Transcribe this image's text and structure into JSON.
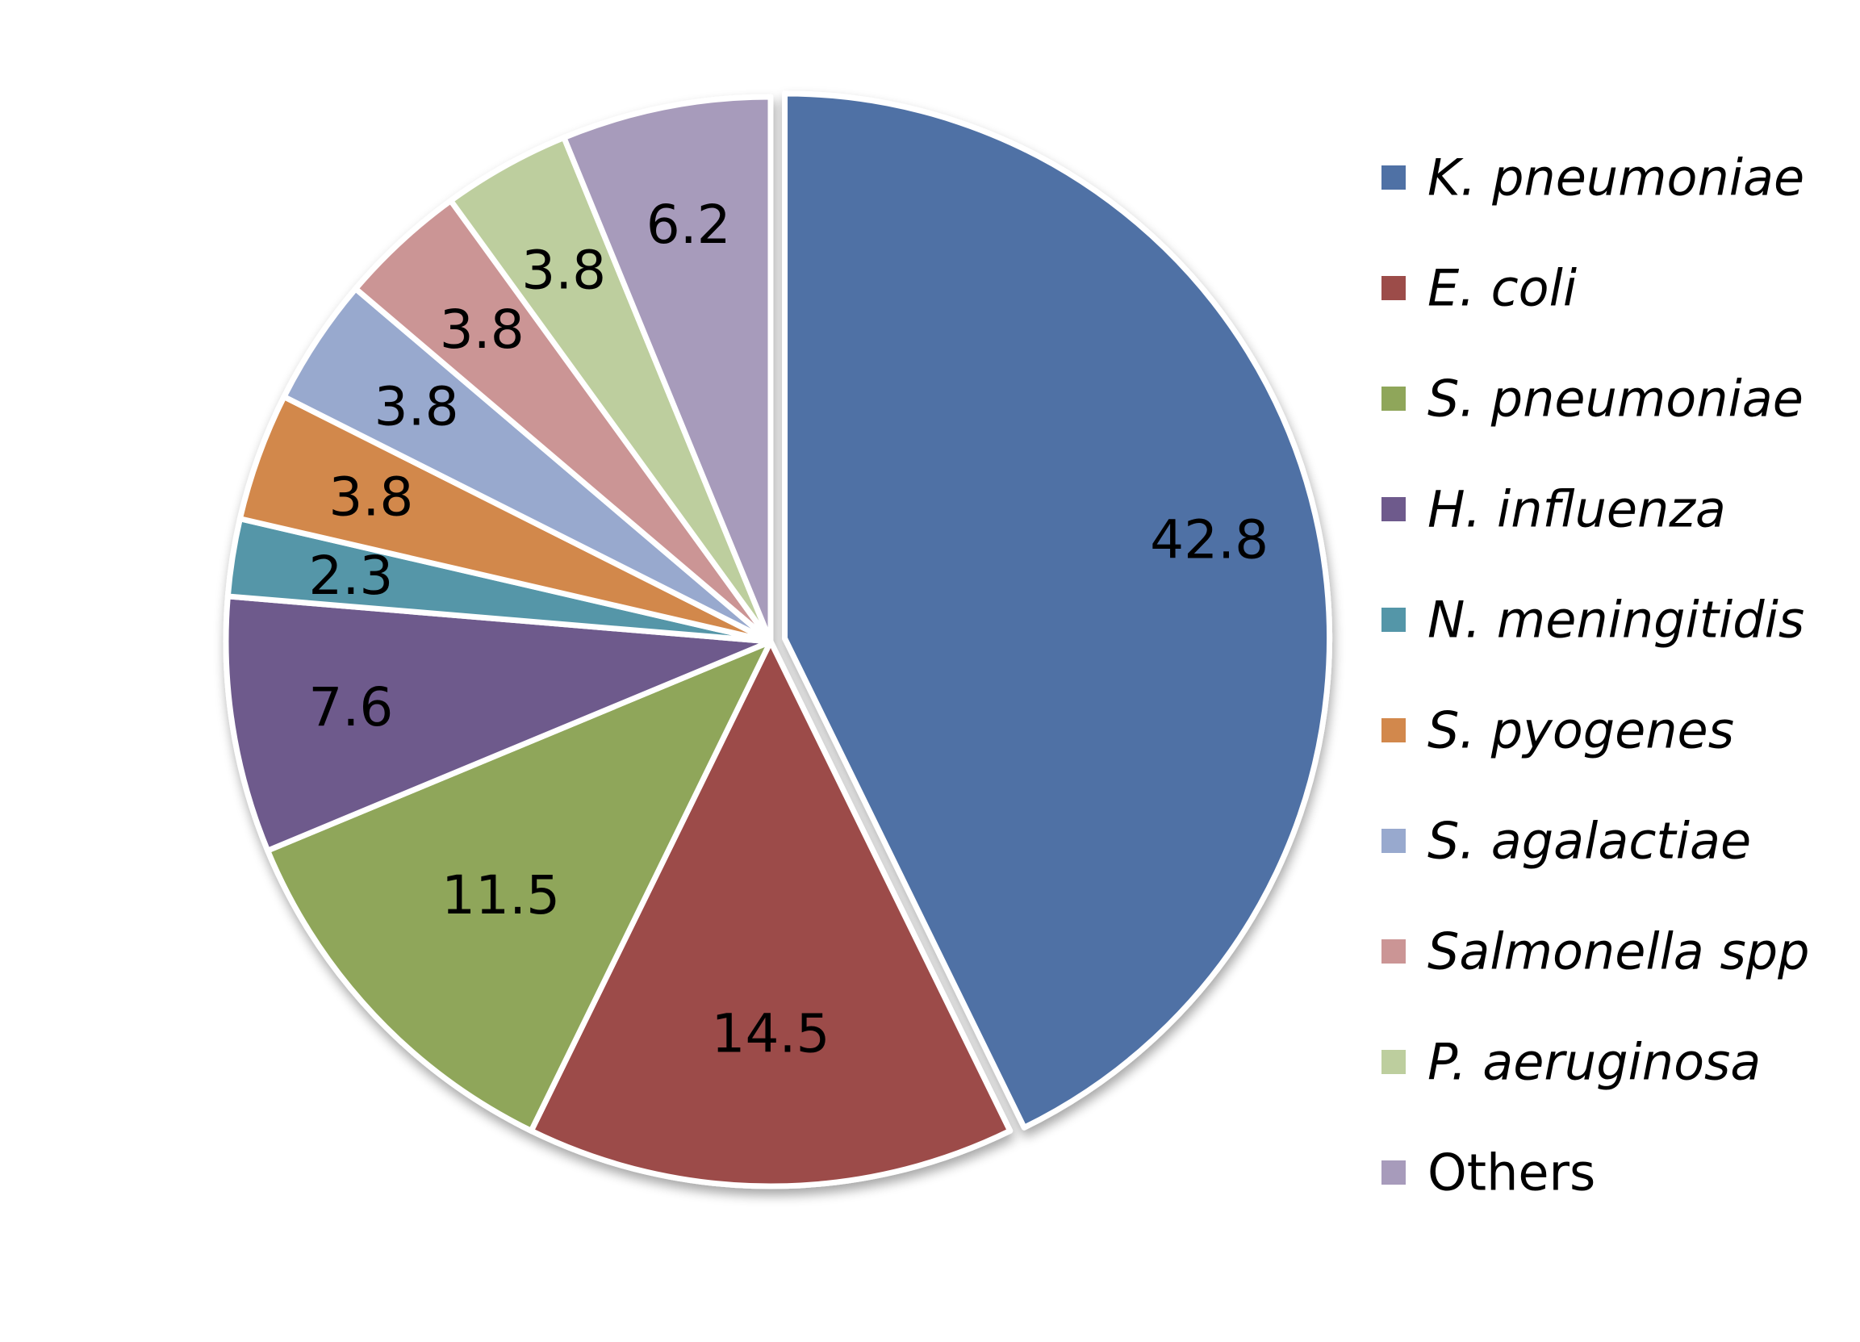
{
  "chart_data": {
    "type": "pie",
    "title": "",
    "start_angle_deg": 0,
    "direction": "clockwise",
    "legend_position": "right",
    "slices": [
      {
        "label": "K. pneumoniae",
        "value": 42.8,
        "value_label": "42.8",
        "color": "#4F71A5"
      },
      {
        "label": "E. coli",
        "value": 14.5,
        "value_label": "14.5",
        "color": "#9C4C49"
      },
      {
        "label": "S. pneumoniae",
        "value": 11.5,
        "value_label": "11.5",
        "color": "#8FA65A"
      },
      {
        "label": "H. influenza",
        "value": 7.6,
        "value_label": "7.6",
        "color": "#6E5A8C"
      },
      {
        "label": "N. meningitidis",
        "value": 2.3,
        "value_label": "2.3",
        "color": "#5496A8"
      },
      {
        "label": "S. pyogenes",
        "value": 3.8,
        "value_label": "3.8",
        "color": "#D2884C"
      },
      {
        "label": "S. agalactiae",
        "value": 3.8,
        "value_label": "3.8",
        "color": "#98A9CE"
      },
      {
        "label": "Salmonella spp",
        "value": 3.8,
        "value_label": "3.8",
        "color": "#CB9595"
      },
      {
        "label": "P. aeruginosa",
        "value": 3.8,
        "value_label": "3.8",
        "color": "#BDCE9E"
      },
      {
        "label": "Others",
        "value": 6.2,
        "value_label": "6.2",
        "color": "#A79BBB",
        "plain": true
      }
    ]
  }
}
